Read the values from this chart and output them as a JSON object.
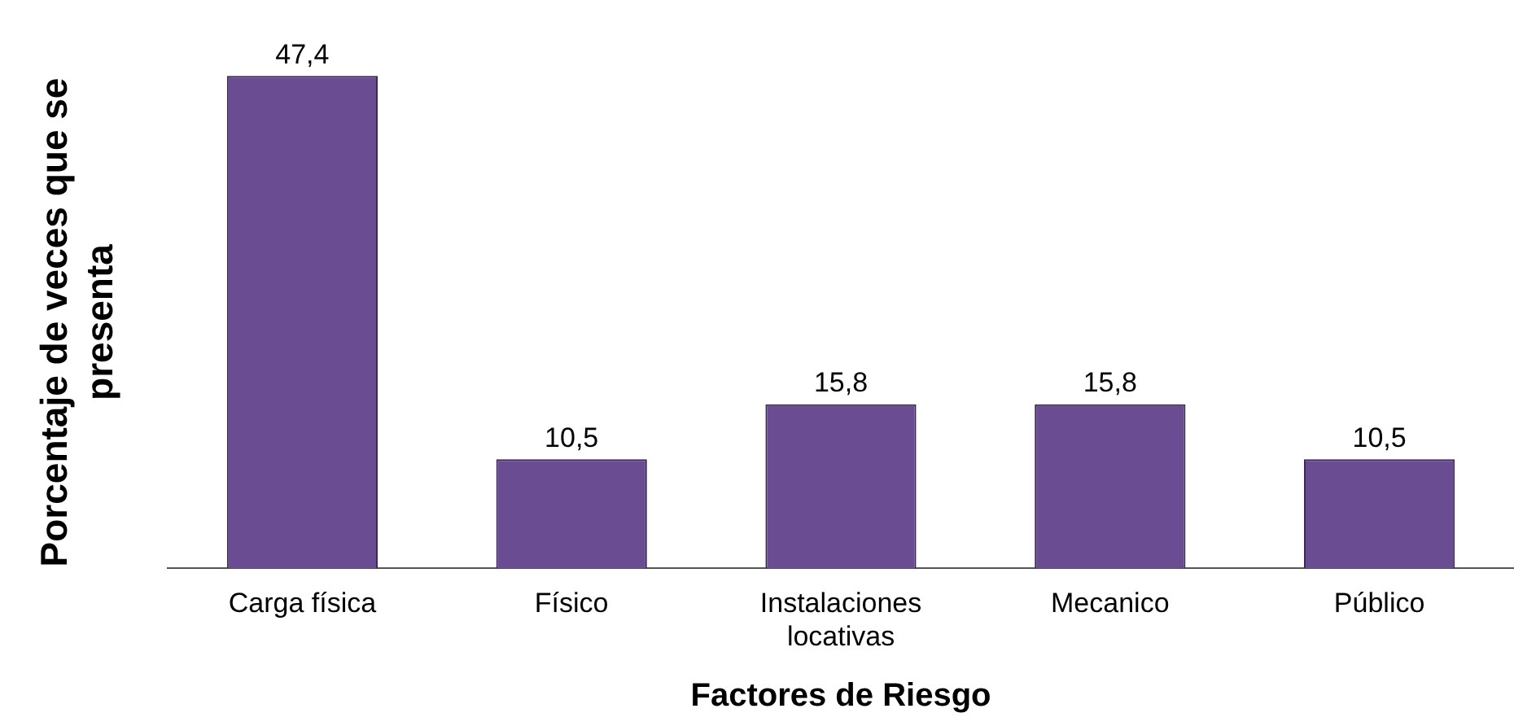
{
  "chart_data": {
    "type": "bar",
    "xlabel": "Factores de Riesgo",
    "ylabel": "Porcentaje de veces que se presenta",
    "categories": [
      "Carga física",
      "Físico",
      "Instalaciones locativas",
      "Mecanico",
      "Público"
    ],
    "values": [
      47.4,
      10.5,
      15.8,
      15.8,
      10.5
    ],
    "value_labels": [
      "47,4",
      "10,5",
      "15,8",
      "15,8",
      "10,5"
    ],
    "color": "#6a4c93",
    "grid": false,
    "legend": false,
    "tick_labels": "x"
  }
}
